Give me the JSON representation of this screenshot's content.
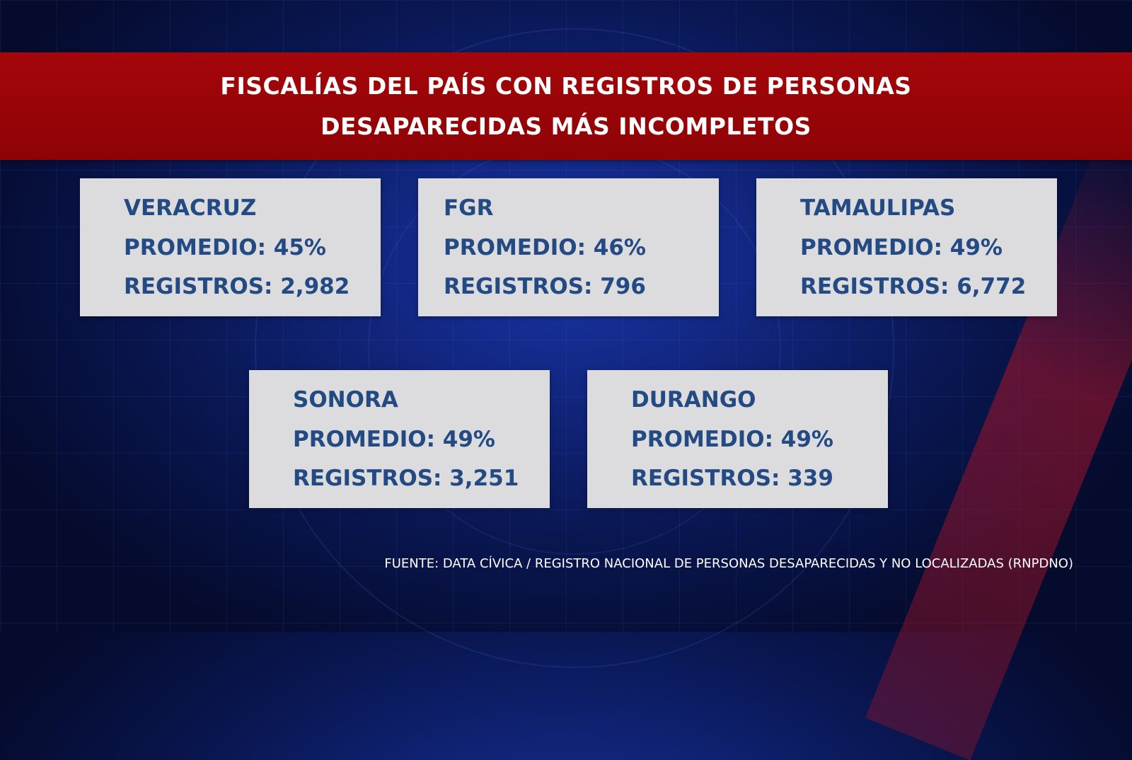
{
  "title": {
    "line1": "FISCALÍAS DEL PAÍS CON REGISTROS DE PERSONAS",
    "line2": "DESAPARECIDAS MÁS INCOMPLETOS"
  },
  "cards": [
    {
      "name": "VERACRUZ",
      "promedio": "PROMEDIO: 45%",
      "registros": "REGISTROS: 2,982"
    },
    {
      "name": "FGR",
      "promedio": "PROMEDIO: 46%",
      "registros": "REGISTROS: 796"
    },
    {
      "name": "TAMAULIPAS",
      "promedio": "PROMEDIO: 49%",
      "registros": "REGISTROS: 6,772"
    },
    {
      "name": "SONORA",
      "promedio": "PROMEDIO: 49%",
      "registros": "REGISTROS: 3,251"
    },
    {
      "name": "DURANGO",
      "promedio": "PROMEDIO: 49%",
      "registros": "REGISTROS: 339"
    }
  ],
  "source": "FUENTE: DATA CÍVICA /  REGISTRO NACIONAL DE PERSONAS DESAPARECIDAS Y NO LOCALIZADAS (RNPDNO)",
  "colors": {
    "banner_red": "#9a0508",
    "card_bg": "#dcdcde",
    "card_text": "#234a83",
    "background_blue": "#102478"
  }
}
